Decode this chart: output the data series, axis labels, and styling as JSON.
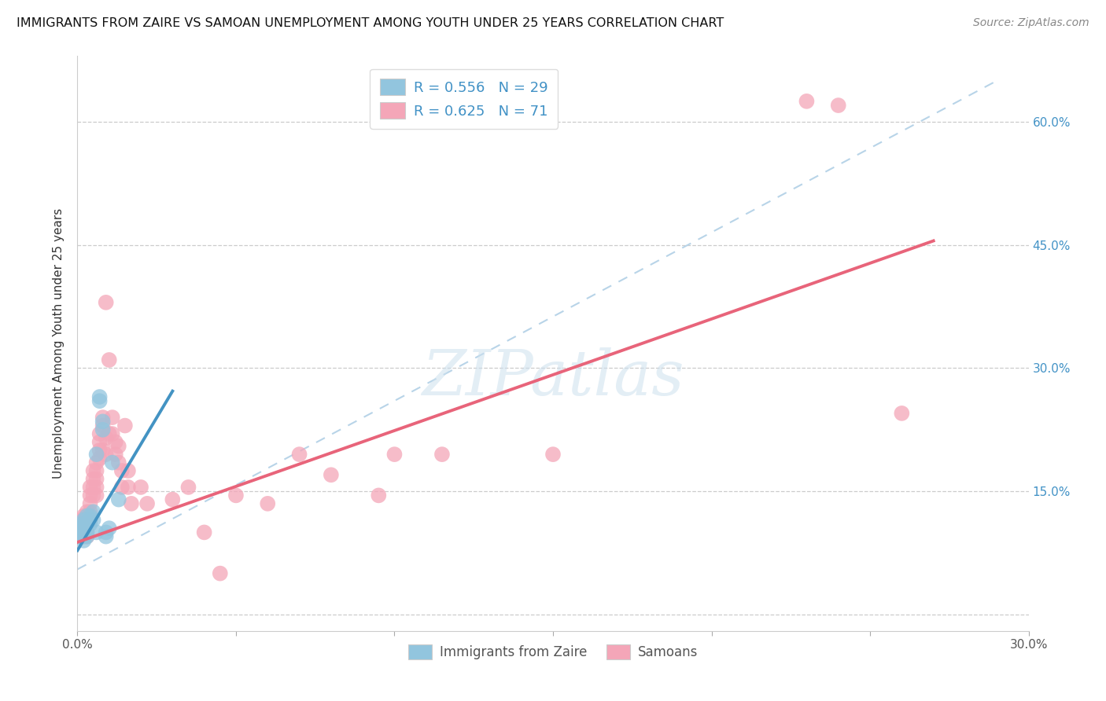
{
  "title": "IMMIGRANTS FROM ZAIRE VS SAMOAN UNEMPLOYMENT AMONG YOUTH UNDER 25 YEARS CORRELATION CHART",
  "source": "Source: ZipAtlas.com",
  "ylabel": "Unemployment Among Youth under 25 years",
  "xlim": [
    0.0,
    0.3
  ],
  "ylim": [
    -0.02,
    0.68
  ],
  "yticks": [
    0.0,
    0.15,
    0.3,
    0.45,
    0.6
  ],
  "ytick_labels": [
    "",
    "15.0%",
    "30.0%",
    "45.0%",
    "60.0%"
  ],
  "xticks": [
    0.0,
    0.05,
    0.1,
    0.15,
    0.2,
    0.25,
    0.3
  ],
  "xtick_labels": [
    "0.0%",
    "",
    "",
    "",
    "",
    "",
    "30.0%"
  ],
  "legend_r1": "R = 0.556",
  "legend_n1": "N = 29",
  "legend_r2": "R = 0.625",
  "legend_n2": "N = 71",
  "watermark": "ZIPatlas",
  "color_blue": "#92c5de",
  "color_pink": "#f4a6b8",
  "color_blue_line": "#4393c3",
  "color_pink_line": "#e8647a",
  "color_dashed": "#b8d4e8",
  "zaire_points": [
    [
      0.001,
      0.11
    ],
    [
      0.001,
      0.105
    ],
    [
      0.001,
      0.1
    ],
    [
      0.001,
      0.095
    ],
    [
      0.002,
      0.115
    ],
    [
      0.002,
      0.11
    ],
    [
      0.002,
      0.1
    ],
    [
      0.002,
      0.095
    ],
    [
      0.002,
      0.09
    ],
    [
      0.003,
      0.12
    ],
    [
      0.003,
      0.11
    ],
    [
      0.003,
      0.1
    ],
    [
      0.003,
      0.095
    ],
    [
      0.004,
      0.12
    ],
    [
      0.004,
      0.115
    ],
    [
      0.004,
      0.11
    ],
    [
      0.005,
      0.125
    ],
    [
      0.005,
      0.115
    ],
    [
      0.006,
      0.195
    ],
    [
      0.006,
      0.1
    ],
    [
      0.007,
      0.265
    ],
    [
      0.007,
      0.26
    ],
    [
      0.008,
      0.235
    ],
    [
      0.008,
      0.225
    ],
    [
      0.009,
      0.1
    ],
    [
      0.009,
      0.095
    ],
    [
      0.01,
      0.105
    ],
    [
      0.011,
      0.185
    ],
    [
      0.013,
      0.14
    ]
  ],
  "samoan_points": [
    [
      0.001,
      0.115
    ],
    [
      0.001,
      0.11
    ],
    [
      0.001,
      0.105
    ],
    [
      0.001,
      0.1
    ],
    [
      0.001,
      0.095
    ],
    [
      0.002,
      0.12
    ],
    [
      0.002,
      0.115
    ],
    [
      0.002,
      0.11
    ],
    [
      0.002,
      0.105
    ],
    [
      0.002,
      0.095
    ],
    [
      0.003,
      0.125
    ],
    [
      0.003,
      0.12
    ],
    [
      0.003,
      0.115
    ],
    [
      0.003,
      0.11
    ],
    [
      0.003,
      0.1
    ],
    [
      0.003,
      0.095
    ],
    [
      0.004,
      0.155
    ],
    [
      0.004,
      0.145
    ],
    [
      0.004,
      0.135
    ],
    [
      0.004,
      0.125
    ],
    [
      0.004,
      0.115
    ],
    [
      0.005,
      0.175
    ],
    [
      0.005,
      0.165
    ],
    [
      0.005,
      0.155
    ],
    [
      0.005,
      0.145
    ],
    [
      0.006,
      0.185
    ],
    [
      0.006,
      0.175
    ],
    [
      0.006,
      0.165
    ],
    [
      0.006,
      0.155
    ],
    [
      0.006,
      0.145
    ],
    [
      0.007,
      0.22
    ],
    [
      0.007,
      0.21
    ],
    [
      0.007,
      0.2
    ],
    [
      0.007,
      0.19
    ],
    [
      0.008,
      0.24
    ],
    [
      0.008,
      0.23
    ],
    [
      0.008,
      0.2
    ],
    [
      0.009,
      0.38
    ],
    [
      0.009,
      0.215
    ],
    [
      0.009,
      0.195
    ],
    [
      0.01,
      0.31
    ],
    [
      0.01,
      0.22
    ],
    [
      0.011,
      0.24
    ],
    [
      0.011,
      0.22
    ],
    [
      0.012,
      0.21
    ],
    [
      0.012,
      0.195
    ],
    [
      0.013,
      0.205
    ],
    [
      0.013,
      0.185
    ],
    [
      0.014,
      0.175
    ],
    [
      0.014,
      0.155
    ],
    [
      0.015,
      0.23
    ],
    [
      0.016,
      0.175
    ],
    [
      0.016,
      0.155
    ],
    [
      0.017,
      0.135
    ],
    [
      0.02,
      0.155
    ],
    [
      0.022,
      0.135
    ],
    [
      0.03,
      0.14
    ],
    [
      0.035,
      0.155
    ],
    [
      0.04,
      0.1
    ],
    [
      0.045,
      0.05
    ],
    [
      0.05,
      0.145
    ],
    [
      0.06,
      0.135
    ],
    [
      0.07,
      0.195
    ],
    [
      0.08,
      0.17
    ],
    [
      0.095,
      0.145
    ],
    [
      0.1,
      0.195
    ],
    [
      0.115,
      0.195
    ],
    [
      0.15,
      0.195
    ],
    [
      0.23,
      0.625
    ],
    [
      0.24,
      0.62
    ],
    [
      0.26,
      0.245
    ]
  ],
  "blue_line": [
    [
      0.0,
      0.078
    ],
    [
      0.03,
      0.272
    ]
  ],
  "pink_line": [
    [
      0.0,
      0.088
    ],
    [
      0.27,
      0.455
    ]
  ],
  "dashed_line": [
    [
      0.0,
      0.055
    ],
    [
      0.29,
      0.65
    ]
  ]
}
